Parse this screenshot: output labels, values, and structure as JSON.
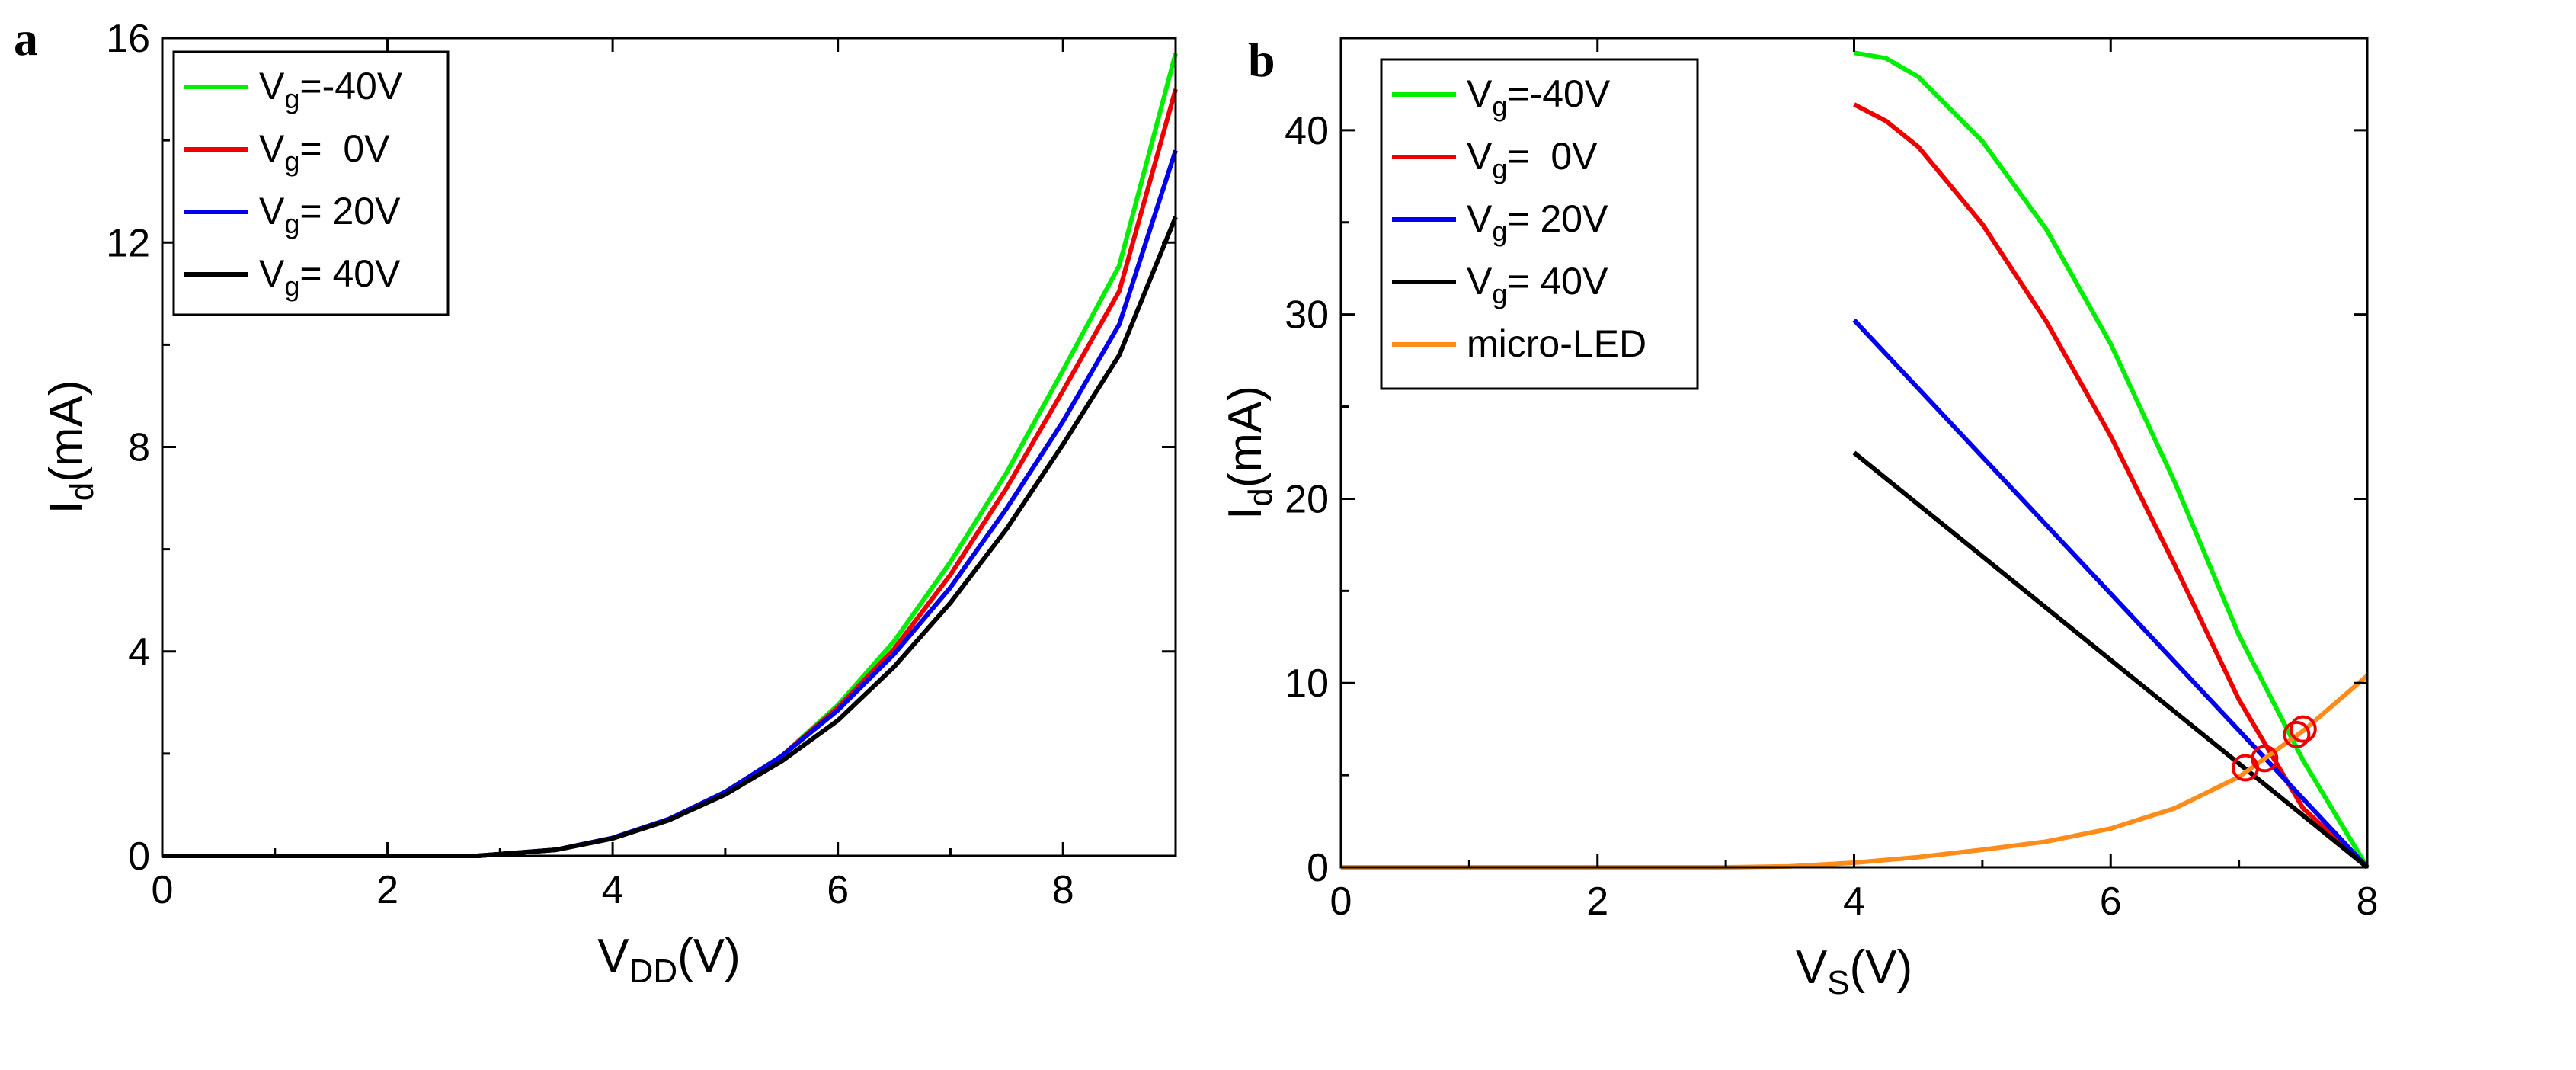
{
  "chart_data": [
    {
      "type": "line",
      "panel_label": "a",
      "xlabel": {
        "main": "V",
        "sub": "DD",
        "unit": "(V)"
      },
      "ylabel": {
        "main": "I",
        "sub": "d",
        "unit": "(mA)"
      },
      "xlim": [
        0,
        9
      ],
      "ylim": [
        0,
        16
      ],
      "xticks": [
        0,
        2,
        4,
        6,
        8
      ],
      "yticks": [
        0,
        4,
        8,
        12,
        16
      ],
      "legend_position": "top-left",
      "series": [
        {
          "name": "Vg=-40V",
          "label_main": "V",
          "label_sub": "g",
          "label_rest": "=-40V",
          "color": "#00ee00",
          "x": [
            0,
            2,
            2.8,
            3.5,
            4,
            4.5,
            5,
            5.5,
            6,
            6.5,
            7,
            7.5,
            8,
            8.5,
            9
          ],
          "y": [
            0,
            0,
            0,
            0.12,
            0.35,
            0.72,
            1.25,
            1.95,
            2.95,
            4.2,
            5.75,
            7.5,
            9.5,
            11.55,
            15.7
          ]
        },
        {
          "name": "Vg= 0V",
          "label_main": "V",
          "label_sub": "g",
          "label_rest": "=  0V",
          "color": "#ee0000",
          "x": [
            0,
            2,
            2.8,
            3.5,
            4,
            4.5,
            5,
            5.5,
            6,
            6.5,
            7,
            7.5,
            8,
            8.5,
            9
          ],
          "y": [
            0,
            0,
            0,
            0.12,
            0.35,
            0.72,
            1.25,
            1.95,
            2.9,
            4.05,
            5.5,
            7.2,
            9.1,
            11.05,
            15.0
          ]
        },
        {
          "name": "Vg= 20V",
          "label_main": "V",
          "label_sub": "g",
          "label_rest": "= 20V",
          "color": "#0000ee",
          "x": [
            0,
            2,
            2.8,
            3.5,
            4,
            4.5,
            5,
            5.5,
            6,
            6.5,
            7,
            7.5,
            8,
            8.5,
            9
          ],
          "y": [
            0,
            0,
            0,
            0.12,
            0.35,
            0.72,
            1.25,
            1.95,
            2.85,
            3.95,
            5.25,
            6.8,
            8.5,
            10.4,
            13.8
          ]
        },
        {
          "name": "Vg= 40V",
          "label_main": "V",
          "label_sub": "g",
          "label_rest": "= 40V",
          "color": "#000000",
          "x": [
            0,
            2,
            2.8,
            3.5,
            4,
            4.5,
            5,
            5.5,
            6,
            6.5,
            7,
            7.5,
            8,
            8.5,
            9
          ],
          "y": [
            0,
            0,
            0,
            0.12,
            0.34,
            0.7,
            1.2,
            1.85,
            2.65,
            3.7,
            4.95,
            6.4,
            8.05,
            9.8,
            12.5
          ]
        }
      ]
    },
    {
      "type": "line",
      "panel_label": "b",
      "xlabel": {
        "main": "V",
        "sub": "S",
        "unit": "(V)"
      },
      "ylabel": {
        "main": "I",
        "sub": "d",
        "unit": "(mA)"
      },
      "xlim": [
        0,
        8
      ],
      "ylim": [
        0,
        45
      ],
      "xticks": [
        0,
        2,
        4,
        6,
        8
      ],
      "yticks": [
        0,
        10,
        20,
        30,
        40
      ],
      "legend_position": "top-left",
      "series": [
        {
          "name": "Vg=-40V",
          "label_main": "V",
          "label_sub": "g",
          "label_rest": "=-40V",
          "color": "#00ee00",
          "x": [
            4,
            4.25,
            4.5,
            5,
            5.5,
            6,
            6.5,
            7,
            7.5,
            8
          ],
          "y": [
            44.2,
            43.9,
            42.9,
            39.4,
            34.6,
            28.4,
            20.9,
            12.6,
            5.8,
            0
          ]
        },
        {
          "name": "Vg= 0V",
          "label_main": "V",
          "label_sub": "g",
          "label_rest": "=  0V",
          "color": "#ee0000",
          "x": [
            4,
            4.25,
            4.5,
            5,
            5.5,
            6,
            6.5,
            7,
            7.5,
            8
          ],
          "y": [
            41.4,
            40.5,
            39.1,
            34.9,
            29.6,
            23.4,
            16.4,
            9.1,
            3.2,
            0
          ]
        },
        {
          "name": "Vg= 20V",
          "label_main": "V",
          "label_sub": "g",
          "label_rest": "= 20V",
          "color": "#0000ee",
          "x": [
            4,
            8
          ],
          "y": [
            29.7,
            0
          ]
        },
        {
          "name": "Vg= 40V",
          "label_main": "V",
          "label_sub": "g",
          "label_rest": "= 40V",
          "color": "#000000",
          "x": [
            4,
            8
          ],
          "y": [
            22.5,
            0
          ]
        },
        {
          "name": "micro-LED",
          "label_main": "micro-LED",
          "label_sub": "",
          "label_rest": "",
          "color": "#ff8c1a",
          "x": [
            0,
            2,
            3,
            3.5,
            4,
            4.5,
            5,
            5.5,
            6,
            6.5,
            7,
            7.5,
            8
          ],
          "y": [
            0,
            0,
            0,
            0.05,
            0.25,
            0.55,
            0.95,
            1.4,
            2.1,
            3.2,
            4.9,
            7.4,
            10.4
          ]
        }
      ],
      "markers": [
        {
          "name": "operating-point-vg40",
          "x": 7.05,
          "y": 5.4,
          "color": "#ee0000"
        },
        {
          "name": "operating-point-vg20",
          "x": 7.2,
          "y": 5.9,
          "color": "#ee0000"
        },
        {
          "name": "operating-point-vg0",
          "x": 7.45,
          "y": 7.2,
          "color": "#ee0000"
        },
        {
          "name": "operating-point-vg-40",
          "x": 7.5,
          "y": 7.5,
          "color": "#ee0000"
        }
      ]
    }
  ]
}
